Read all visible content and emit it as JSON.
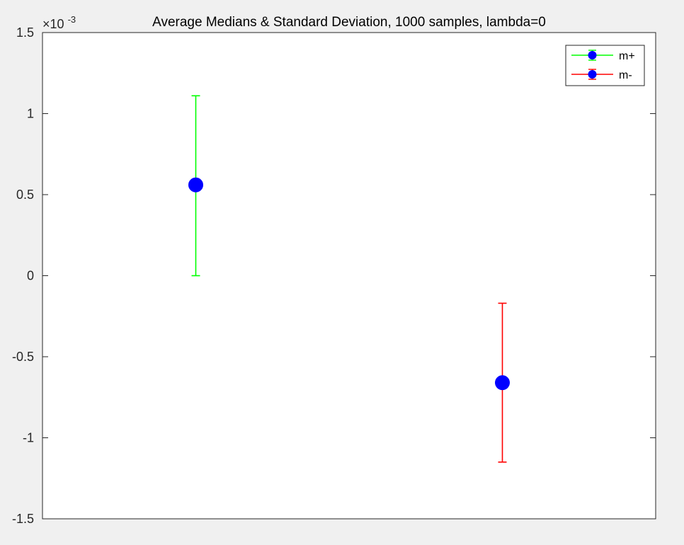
{
  "chart_data": {
    "type": "scatter",
    "title": "Average Medians & Standard Deviation, 1000 samples, lambda=0",
    "xlabel": "",
    "ylabel": "",
    "y_exponent_label": "×10",
    "y_exponent_power": "-3",
    "xlim": [
      0.5,
      2.5
    ],
    "ylim": [
      -1.5,
      1.5
    ],
    "yticks": [
      -1.5,
      -1,
      -0.5,
      0,
      0.5,
      1,
      1.5
    ],
    "ytick_labels": [
      "-1.5",
      "-1",
      "-0.5",
      "0",
      "0.5",
      "1",
      "1.5"
    ],
    "grid": false,
    "legend_position": "top-right",
    "series": [
      {
        "name": "m+",
        "x": 1,
        "y": 0.56,
        "lower": 0.0,
        "upper": 1.11,
        "bar_color": "#00ff00",
        "marker_color": "#0000ff"
      },
      {
        "name": "m-",
        "x": 2,
        "y": -0.66,
        "lower": -1.15,
        "upper": -0.17,
        "bar_color": "#ff0000",
        "marker_color": "#0000ff"
      }
    ]
  }
}
